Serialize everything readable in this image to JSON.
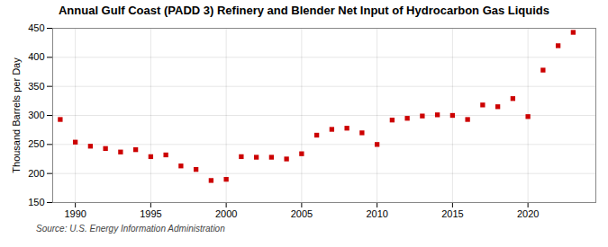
{
  "chart_data": {
    "type": "scatter",
    "title": "Annual Gulf Coast (PADD 3) Refinery and Blender Net Input of Hydrocarbon Gas Liquids",
    "ylabel": "Thousand Barrels per Day",
    "source": "Source: U.S. Energy Information Administration",
    "x": [
      1989,
      1990,
      1991,
      1992,
      1993,
      1994,
      1995,
      1996,
      1997,
      1998,
      1999,
      2000,
      2001,
      2002,
      2003,
      2004,
      2005,
      2006,
      2007,
      2008,
      2009,
      2010,
      2011,
      2012,
      2013,
      2014,
      2015,
      2016,
      2017,
      2018,
      2019,
      2020,
      2021,
      2022,
      2023
    ],
    "values": [
      293,
      254,
      247,
      243,
      237,
      241,
      229,
      232,
      213,
      207,
      188,
      190,
      229,
      228,
      228,
      225,
      234,
      266,
      276,
      278,
      270,
      250,
      292,
      295,
      299,
      301,
      300,
      293,
      318,
      315,
      329,
      298,
      378,
      420,
      443
    ],
    "color": "#cc0000",
    "marker": "square",
    "ylim": [
      150,
      450
    ],
    "yticks": [
      150,
      200,
      250,
      300,
      350,
      400,
      450
    ],
    "xlim": [
      1988.5,
      2024.5
    ],
    "xticks": [
      1990,
      1995,
      2000,
      2005,
      2010,
      2015,
      2020
    ],
    "grid": true
  }
}
